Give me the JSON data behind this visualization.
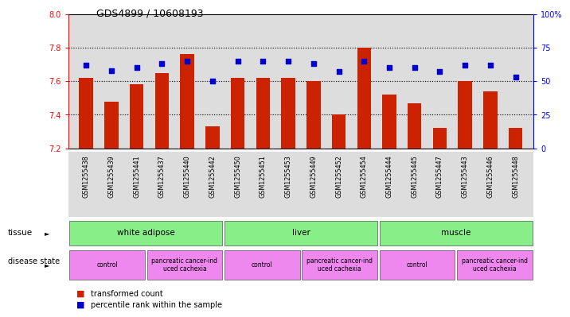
{
  "title": "GDS4899 / 10608193",
  "samples": [
    "GSM1255438",
    "GSM1255439",
    "GSM1255441",
    "GSM1255437",
    "GSM1255440",
    "GSM1255442",
    "GSM1255450",
    "GSM1255451",
    "GSM1255453",
    "GSM1255449",
    "GSM1255452",
    "GSM1255454",
    "GSM1255444",
    "GSM1255445",
    "GSM1255447",
    "GSM1255443",
    "GSM1255446",
    "GSM1255448"
  ],
  "transformed_count": [
    7.62,
    7.48,
    7.58,
    7.65,
    7.76,
    7.33,
    7.62,
    7.62,
    7.62,
    7.6,
    7.4,
    7.8,
    7.52,
    7.47,
    7.32,
    7.6,
    7.54,
    7.32
  ],
  "percentile_rank": [
    62,
    58,
    60,
    63,
    65,
    50,
    65,
    65,
    65,
    63,
    57,
    65,
    60,
    60,
    57,
    62,
    62,
    53
  ],
  "ylim_left": [
    7.2,
    8.0
  ],
  "ylim_right": [
    0,
    100
  ],
  "yticks_left": [
    7.2,
    7.4,
    7.6,
    7.8,
    8.0
  ],
  "yticks_right": [
    0,
    25,
    50,
    75,
    100
  ],
  "ytick_labels_right": [
    "0",
    "25",
    "50",
    "75",
    "100%"
  ],
  "bar_color": "#cc2200",
  "dot_color": "#0000cc",
  "background_color": "#ffffff",
  "plot_bg_color": "#dddddd",
  "tissue_color": "#88ee88",
  "disease_color": "#ee88ee",
  "tissue_groups": [
    {
      "label": "white adipose",
      "start": 0,
      "end": 6
    },
    {
      "label": "liver",
      "start": 6,
      "end": 12
    },
    {
      "label": "muscle",
      "start": 12,
      "end": 18
    }
  ],
  "disease_groups": [
    {
      "label": "control",
      "start": 0,
      "end": 3
    },
    {
      "label": "pancreatic cancer-ind\nuced cachexia",
      "start": 3,
      "end": 6
    },
    {
      "label": "control",
      "start": 6,
      "end": 9
    },
    {
      "label": "pancreatic cancer-ind\nuced cachexia",
      "start": 9,
      "end": 12
    },
    {
      "label": "control",
      "start": 12,
      "end": 15
    },
    {
      "label": "pancreatic cancer-ind\nuced cachexia",
      "start": 15,
      "end": 18
    }
  ]
}
